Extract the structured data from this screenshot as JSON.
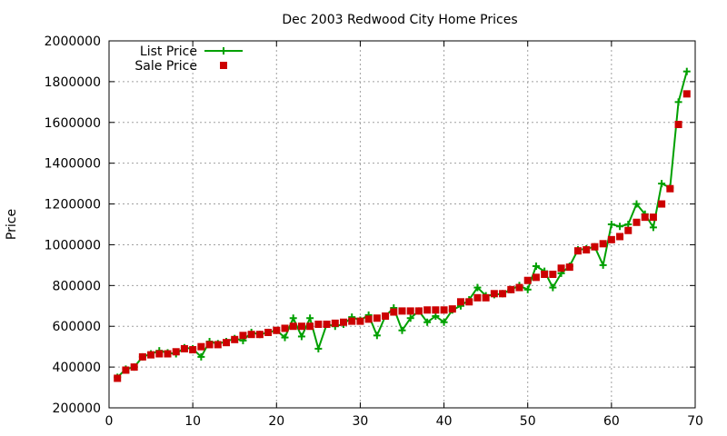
{
  "chart_data": {
    "type": "line",
    "title": "Dec 2003 Redwood City Home Prices",
    "xlabel": "",
    "ylabel": "Price",
    "xlim": [
      0,
      70
    ],
    "ylim": [
      200000,
      2000000
    ],
    "x_ticks": [
      "0",
      "10",
      "20",
      "30",
      "40",
      "50",
      "60",
      "70"
    ],
    "y_ticks": [
      "200000",
      "400000",
      "600000",
      "800000",
      "1000000",
      "1200000",
      "1400000",
      "1600000",
      "1800000",
      "2000000"
    ],
    "grid": true,
    "legend_position": "top-left",
    "x": [
      1,
      2,
      3,
      4,
      5,
      6,
      7,
      8,
      9,
      10,
      11,
      12,
      13,
      14,
      15,
      16,
      17,
      18,
      19,
      20,
      21,
      22,
      23,
      24,
      25,
      26,
      27,
      28,
      29,
      30,
      31,
      32,
      33,
      34,
      35,
      36,
      37,
      38,
      39,
      40,
      41,
      42,
      43,
      44,
      45,
      46,
      47,
      48,
      49,
      50,
      51,
      52,
      53,
      54,
      55,
      56,
      57,
      58,
      59,
      60,
      61,
      62,
      63,
      64,
      65,
      66,
      67,
      68,
      69
    ],
    "series": [
      {
        "name": "List Price",
        "style": "linespoints",
        "color": "#00a000",
        "values": [
          350000,
          390000,
          400000,
          450000,
          465000,
          480000,
          470000,
          465000,
          495000,
          490000,
          450000,
          525000,
          515000,
          525000,
          540000,
          530000,
          570000,
          560000,
          570000,
          580000,
          545000,
          640000,
          550000,
          640000,
          490000,
          610000,
          600000,
          610000,
          645000,
          630000,
          655000,
          555000,
          650000,
          690000,
          580000,
          640000,
          675000,
          620000,
          650000,
          620000,
          680000,
          700000,
          730000,
          790000,
          750000,
          755000,
          760000,
          780000,
          800000,
          780000,
          895000,
          870000,
          790000,
          860000,
          895000,
          975000,
          980000,
          990000,
          900000,
          1100000,
          1090000,
          1100000,
          1200000,
          1150000,
          1085000,
          1300000,
          1280000,
          1700000,
          1850000
        ]
      },
      {
        "name": "Sale Price",
        "style": "points",
        "color": "#cc0000",
        "values": [
          345000,
          385000,
          400000,
          450000,
          460000,
          465000,
          465000,
          475000,
          490000,
          485000,
          500000,
          510000,
          510000,
          520000,
          535000,
          555000,
          560000,
          560000,
          570000,
          580000,
          590000,
          600000,
          600000,
          600000,
          610000,
          610000,
          615000,
          620000,
          625000,
          625000,
          635000,
          640000,
          650000,
          670000,
          675000,
          675000,
          675000,
          680000,
          680000,
          680000,
          685000,
          720000,
          720000,
          740000,
          740000,
          760000,
          760000,
          780000,
          790000,
          825000,
          840000,
          855000,
          855000,
          885000,
          890000,
          970000,
          975000,
          990000,
          1005000,
          1025000,
          1040000,
          1070000,
          1110000,
          1135000,
          1135000,
          1200000,
          1275000,
          1590000,
          1740000
        ]
      }
    ]
  }
}
